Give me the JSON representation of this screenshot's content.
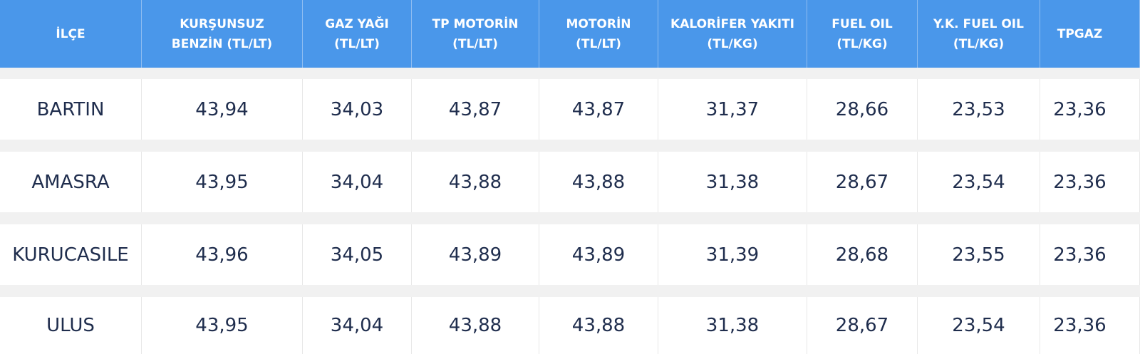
{
  "table": {
    "header": [
      [
        "İLÇE"
      ],
      [
        "KURŞUNSUZ",
        "BENZİN (TL/LT)"
      ],
      [
        "GAZ YAĞI",
        "(TL/LT)"
      ],
      [
        "TP MOTORİN",
        "(TL/LT)"
      ],
      [
        "MOTORİN",
        "(TL/LT)"
      ],
      [
        "KALORİFER YAKITI",
        "(TL/KG)"
      ],
      [
        "FUEL OIL",
        "(TL/KG)"
      ],
      [
        "Y.K. FUEL OIL",
        "(TL/KG)"
      ],
      [
        "TPGAZ"
      ]
    ],
    "rows": [
      [
        "BARTIN",
        "43,94",
        "34,03",
        "43,87",
        "43,87",
        "31,37",
        "28,66",
        "23,53",
        "23,36"
      ],
      [
        "AMASRA",
        "43,95",
        "34,04",
        "43,88",
        "43,88",
        "31,38",
        "28,67",
        "23,54",
        "23,36"
      ],
      [
        "KURUCASILE",
        "43,96",
        "34,05",
        "43,89",
        "43,89",
        "31,39",
        "28,68",
        "23,55",
        "23,36"
      ],
      [
        "ULUS",
        "43,95",
        "34,04",
        "43,88",
        "43,88",
        "31,38",
        "28,67",
        "23,54",
        "23,36"
      ]
    ]
  }
}
